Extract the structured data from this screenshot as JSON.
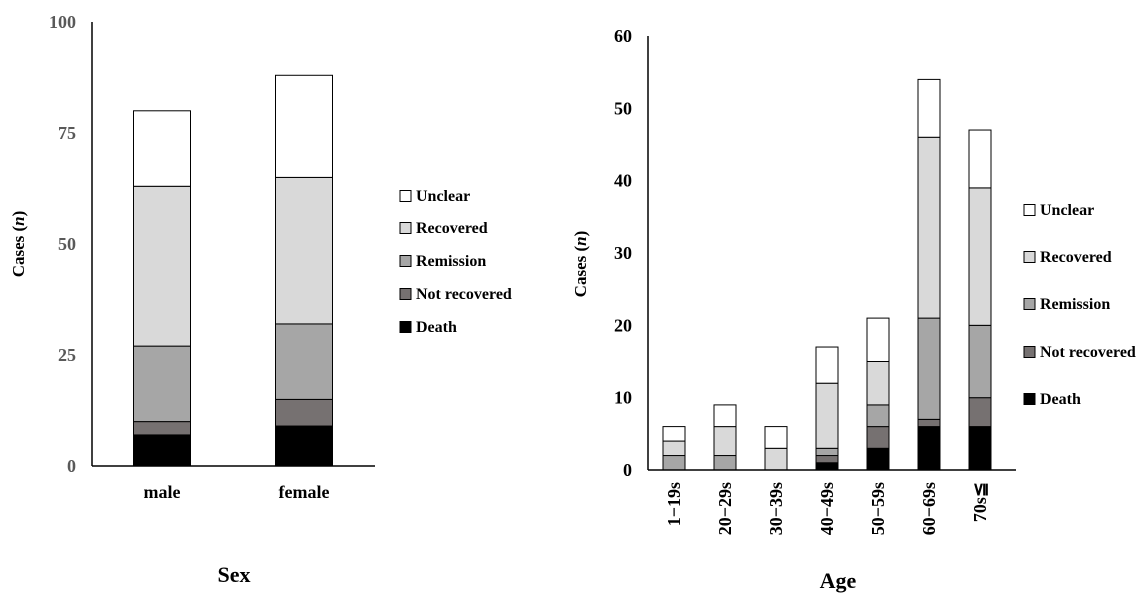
{
  "colors": {
    "Unclear": "#ffffff",
    "Recovered": "#d9d9d9",
    "Remission": "#a6a6a6",
    "Not recovered": "#767171",
    "Death": "#000000"
  },
  "chart_data": [
    {
      "type": "bar",
      "stacked": true,
      "title": "",
      "xlabel": "Sex",
      "ylabel": "Cases (n)",
      "categories": [
        "male",
        "female"
      ],
      "ylim": [
        0,
        100
      ],
      "yticks": [
        "0",
        "25",
        "50",
        "75",
        "100"
      ],
      "legend": "right",
      "grid": false,
      "series": [
        {
          "name": "Death",
          "values": [
            7,
            9
          ]
        },
        {
          "name": "Not recovered",
          "values": [
            3,
            6
          ]
        },
        {
          "name": "Remission",
          "values": [
            17,
            17
          ]
        },
        {
          "name": "Recovered",
          "values": [
            36,
            33
          ]
        },
        {
          "name": "Unclear",
          "values": [
            17,
            23
          ]
        }
      ]
    },
    {
      "type": "bar",
      "stacked": true,
      "title": "",
      "xlabel": "Age",
      "ylabel": "Cases (n)",
      "categories": [
        "1−19s",
        "20−29s",
        "30−39s",
        "40−49s",
        "50−59s",
        "60−69s",
        "70s≦"
      ],
      "ylim": [
        0,
        60
      ],
      "yticks": [
        "0",
        "10",
        "20",
        "30",
        "40",
        "50",
        "60"
      ],
      "legend": "right",
      "grid": false,
      "series": [
        {
          "name": "Death",
          "values": [
            0,
            0,
            0,
            1,
            3,
            6,
            6
          ]
        },
        {
          "name": "Not recovered",
          "values": [
            0,
            0,
            0,
            1,
            3,
            1,
            4
          ]
        },
        {
          "name": "Remission",
          "values": [
            2,
            2,
            0,
            1,
            3,
            14,
            10
          ]
        },
        {
          "name": "Recovered",
          "values": [
            2,
            4,
            3,
            9,
            6,
            25,
            19
          ]
        },
        {
          "name": "Unclear",
          "values": [
            2,
            3,
            3,
            5,
            6,
            8,
            8
          ]
        }
      ]
    }
  ]
}
